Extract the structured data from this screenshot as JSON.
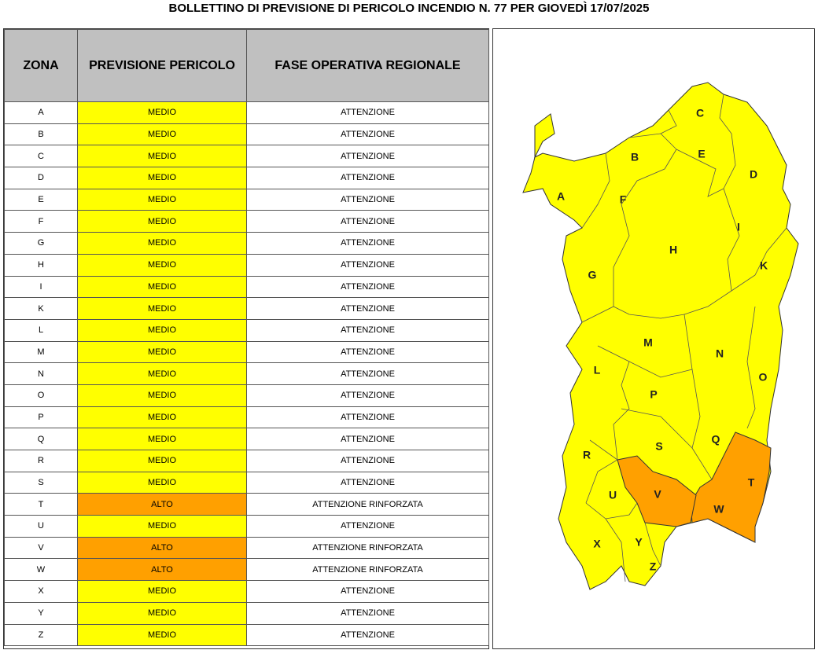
{
  "title": "BOLLETTINO DI PREVISIONE DI PERICOLO INCENDIO N. 77 PER GIOVEDÌ 17/07/2025",
  "table": {
    "header": [
      "ZONA",
      "PREVISIONE PERICOLO",
      "FASE OPERATIVA REGIONALE"
    ],
    "rows": [
      {
        "zona": "A",
        "previsione": "MEDIO",
        "fase": "ATTENZIONE",
        "color": "#ffff00"
      },
      {
        "zona": "B",
        "previsione": "MEDIO",
        "fase": "ATTENZIONE",
        "color": "#ffff00"
      },
      {
        "zona": "C",
        "previsione": "MEDIO",
        "fase": "ATTENZIONE",
        "color": "#ffff00"
      },
      {
        "zona": "D",
        "previsione": "MEDIO",
        "fase": "ATTENZIONE",
        "color": "#ffff00"
      },
      {
        "zona": "E",
        "previsione": "MEDIO",
        "fase": "ATTENZIONE",
        "color": "#ffff00"
      },
      {
        "zona": "F",
        "previsione": "MEDIO",
        "fase": "ATTENZIONE",
        "color": "#ffff00"
      },
      {
        "zona": "G",
        "previsione": "MEDIO",
        "fase": "ATTENZIONE",
        "color": "#ffff00"
      },
      {
        "zona": "H",
        "previsione": "MEDIO",
        "fase": "ATTENZIONE",
        "color": "#ffff00"
      },
      {
        "zona": "I",
        "previsione": "MEDIO",
        "fase": "ATTENZIONE",
        "color": "#ffff00"
      },
      {
        "zona": "K",
        "previsione": "MEDIO",
        "fase": "ATTENZIONE",
        "color": "#ffff00"
      },
      {
        "zona": "L",
        "previsione": "MEDIO",
        "fase": "ATTENZIONE",
        "color": "#ffff00"
      },
      {
        "zona": "M",
        "previsione": "MEDIO",
        "fase": "ATTENZIONE",
        "color": "#ffff00"
      },
      {
        "zona": "N",
        "previsione": "MEDIO",
        "fase": "ATTENZIONE",
        "color": "#ffff00"
      },
      {
        "zona": "O",
        "previsione": "MEDIO",
        "fase": "ATTENZIONE",
        "color": "#ffff00"
      },
      {
        "zona": "P",
        "previsione": "MEDIO",
        "fase": "ATTENZIONE",
        "color": "#ffff00"
      },
      {
        "zona": "Q",
        "previsione": "MEDIO",
        "fase": "ATTENZIONE",
        "color": "#ffff00"
      },
      {
        "zona": "R",
        "previsione": "MEDIO",
        "fase": "ATTENZIONE",
        "color": "#ffff00"
      },
      {
        "zona": "S",
        "previsione": "MEDIO",
        "fase": "ATTENZIONE",
        "color": "#ffff00"
      },
      {
        "zona": "T",
        "previsione": "ALTO",
        "fase": "ATTENZIONE RINFORZATA",
        "color": "#ffa000"
      },
      {
        "zona": "U",
        "previsione": "MEDIO",
        "fase": "ATTENZIONE",
        "color": "#ffff00"
      },
      {
        "zona": "V",
        "previsione": "ALTO",
        "fase": "ATTENZIONE RINFORZATA",
        "color": "#ffa000"
      },
      {
        "zona": "W",
        "previsione": "ALTO",
        "fase": "ATTENZIONE RINFORZATA",
        "color": "#ffa000"
      },
      {
        "zona": "X",
        "previsione": "MEDIO",
        "fase": "ATTENZIONE",
        "color": "#ffff00"
      },
      {
        "zona": "Y",
        "previsione": "MEDIO",
        "fase": "ATTENZIONE",
        "color": "#ffff00"
      },
      {
        "zona": "Z",
        "previsione": "MEDIO",
        "fase": "ATTENZIONE",
        "color": "#ffff00"
      }
    ]
  },
  "map": {
    "labels": [
      "C",
      "B",
      "E",
      "D",
      "A",
      "F",
      "I",
      "H",
      "K",
      "G",
      "M",
      "N",
      "L",
      "O",
      "P",
      "Q",
      "S",
      "R",
      "T",
      "U",
      "V",
      "W",
      "X",
      "Y",
      "Z"
    ]
  }
}
